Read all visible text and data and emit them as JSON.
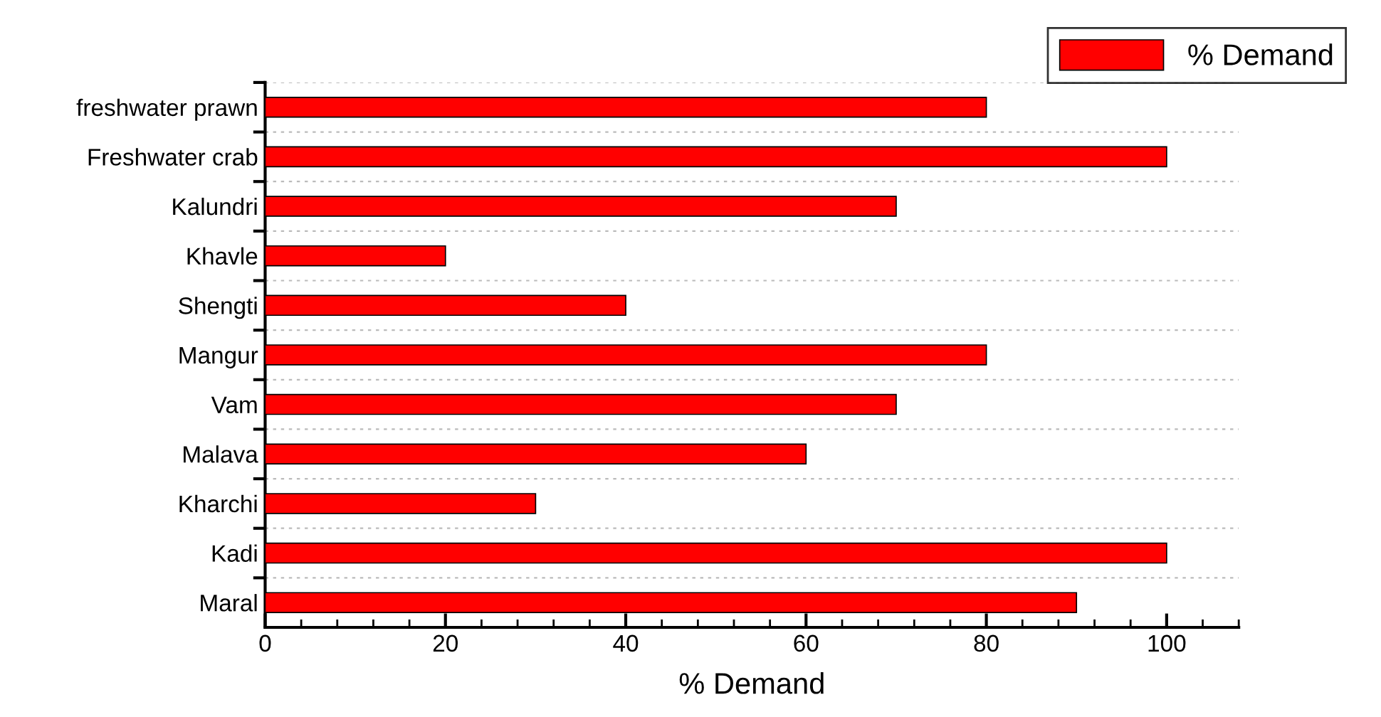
{
  "chart_data": {
    "type": "bar",
    "orientation": "horizontal",
    "xlabel": "% Demand",
    "categories": [
      "freshwater prawn",
      "Freshwater crab",
      "Kalundri",
      "Khavle",
      "Shengti",
      "Mangur",
      "Vam",
      "Malava",
      "Kharchi",
      "Kadi",
      "Maral"
    ],
    "series": [
      {
        "name": "% Demand",
        "color": "#ff0000",
        "values": [
          80,
          100,
          70,
          20,
          40,
          80,
          70,
          60,
          30,
          100,
          90
        ]
      }
    ],
    "xlim": [
      0,
      108
    ],
    "xticks": [
      0,
      20,
      40,
      60,
      80,
      100
    ],
    "grid": "y",
    "legend": "top right"
  }
}
